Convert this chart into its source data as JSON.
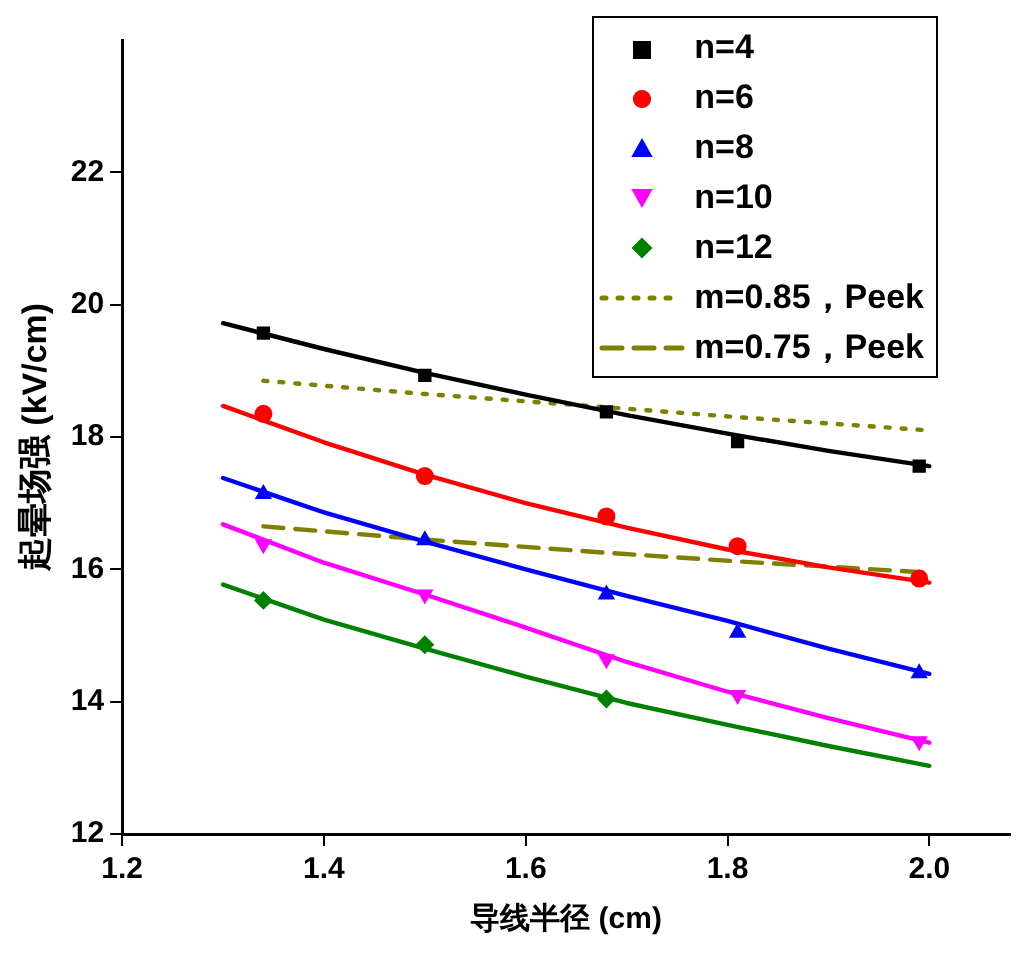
{
  "chart_data": {
    "type": "scatter",
    "xlabel": "导线半径 (cm)",
    "ylabel": "起晕场强 (kV/cm)",
    "xlim": [
      1.2,
      2.08
    ],
    "xticks": [
      1.2,
      1.4,
      1.6,
      1.8,
      {
        "value": 2,
        "label": "2.0"
      }
    ],
    "ylim": [
      12,
      24
    ],
    "yticks": [
      12,
      14,
      16,
      18,
      20,
      22
    ],
    "grid": false,
    "legend": "top right",
    "series": [
      {
        "type": "line",
        "color": "#000000",
        "marker": "none",
        "line_style": "solid",
        "x": [
          1.3,
          1.4,
          1.5,
          1.6,
          1.7,
          1.8,
          1.9,
          2.0
        ],
        "values": [
          19.72,
          19.33,
          18.97,
          18.64,
          18.33,
          18.05,
          17.79,
          17.56
        ]
      },
      {
        "type": "line",
        "color": "#ff0000",
        "marker": "none",
        "line_style": "solid",
        "x": [
          1.3,
          1.4,
          1.5,
          1.6,
          1.7,
          1.8,
          1.9,
          2.0
        ],
        "values": [
          18.47,
          17.92,
          17.43,
          17.0,
          16.63,
          16.3,
          16.03,
          15.8
        ]
      },
      {
        "type": "line",
        "color": "#0000ff",
        "marker": "none",
        "line_style": "solid",
        "x": [
          1.3,
          1.4,
          1.5,
          1.6,
          1.7,
          1.8,
          1.9,
          2.0
        ],
        "values": [
          17.38,
          16.86,
          16.42,
          16.0,
          15.6,
          15.22,
          14.8,
          14.42
        ]
      },
      {
        "type": "line",
        "color": "#ff00ff",
        "marker": "none",
        "line_style": "solid",
        "x": [
          1.3,
          1.4,
          1.5,
          1.6,
          1.7,
          1.8,
          1.9,
          2.0
        ],
        "values": [
          16.68,
          16.1,
          15.62,
          15.12,
          14.6,
          14.15,
          13.75,
          13.38
        ]
      },
      {
        "type": "line",
        "color": "#008000",
        "marker": "none",
        "line_style": "solid",
        "x": [
          1.3,
          1.4,
          1.5,
          1.6,
          1.7,
          1.8,
          1.9,
          2.0
        ],
        "values": [
          15.77,
          15.24,
          14.8,
          14.38,
          13.98,
          13.65,
          13.33,
          13.03
        ]
      },
      {
        "name": "n=4",
        "color": "#000000",
        "marker": "square",
        "x": [
          1.34,
          1.5,
          1.68,
          1.81,
          1.99
        ],
        "values": [
          19.57,
          18.93,
          18.38,
          17.93,
          17.56
        ]
      },
      {
        "name": "n=6",
        "color": "#ff0000",
        "marker": "circle",
        "x": [
          1.34,
          1.5,
          1.68,
          1.81,
          1.99
        ],
        "values": [
          18.35,
          17.41,
          16.8,
          16.35,
          15.86
        ]
      },
      {
        "name": "n=8",
        "color": "#0000ff",
        "marker": "triangle",
        "x": [
          1.34,
          1.5,
          1.68,
          1.81,
          1.99
        ],
        "values": [
          17.14,
          16.44,
          15.62,
          15.04,
          14.43
        ]
      },
      {
        "name": "n=10",
        "color": "#ff00ff",
        "marker": "triangle-down",
        "x": [
          1.34,
          1.5,
          1.68,
          1.81,
          1.99
        ],
        "values": [
          16.38,
          15.62,
          14.64,
          14.1,
          13.4
        ]
      },
      {
        "name": "n=12",
        "color": "#008000",
        "marker": "diamond",
        "x": [
          1.34,
          1.5,
          1.68
        ],
        "values": [
          15.53,
          14.86,
          14.04
        ]
      },
      {
        "name": "m=0.85，Peek",
        "type": "line",
        "color": "#808000",
        "marker": "none",
        "line_style": "dotted",
        "x": [
          1.34,
          1.5,
          1.68,
          1.81,
          2.0
        ],
        "values": [
          18.85,
          18.65,
          18.45,
          18.3,
          18.1
        ]
      },
      {
        "name": "m=0.75，Peek",
        "type": "line",
        "color": "#808000",
        "marker": "none",
        "line_style": "dashed",
        "x": [
          1.34,
          1.5,
          1.68,
          1.81,
          2.0
        ],
        "values": [
          16.65,
          16.45,
          16.25,
          16.12,
          15.95
        ]
      }
    ]
  }
}
